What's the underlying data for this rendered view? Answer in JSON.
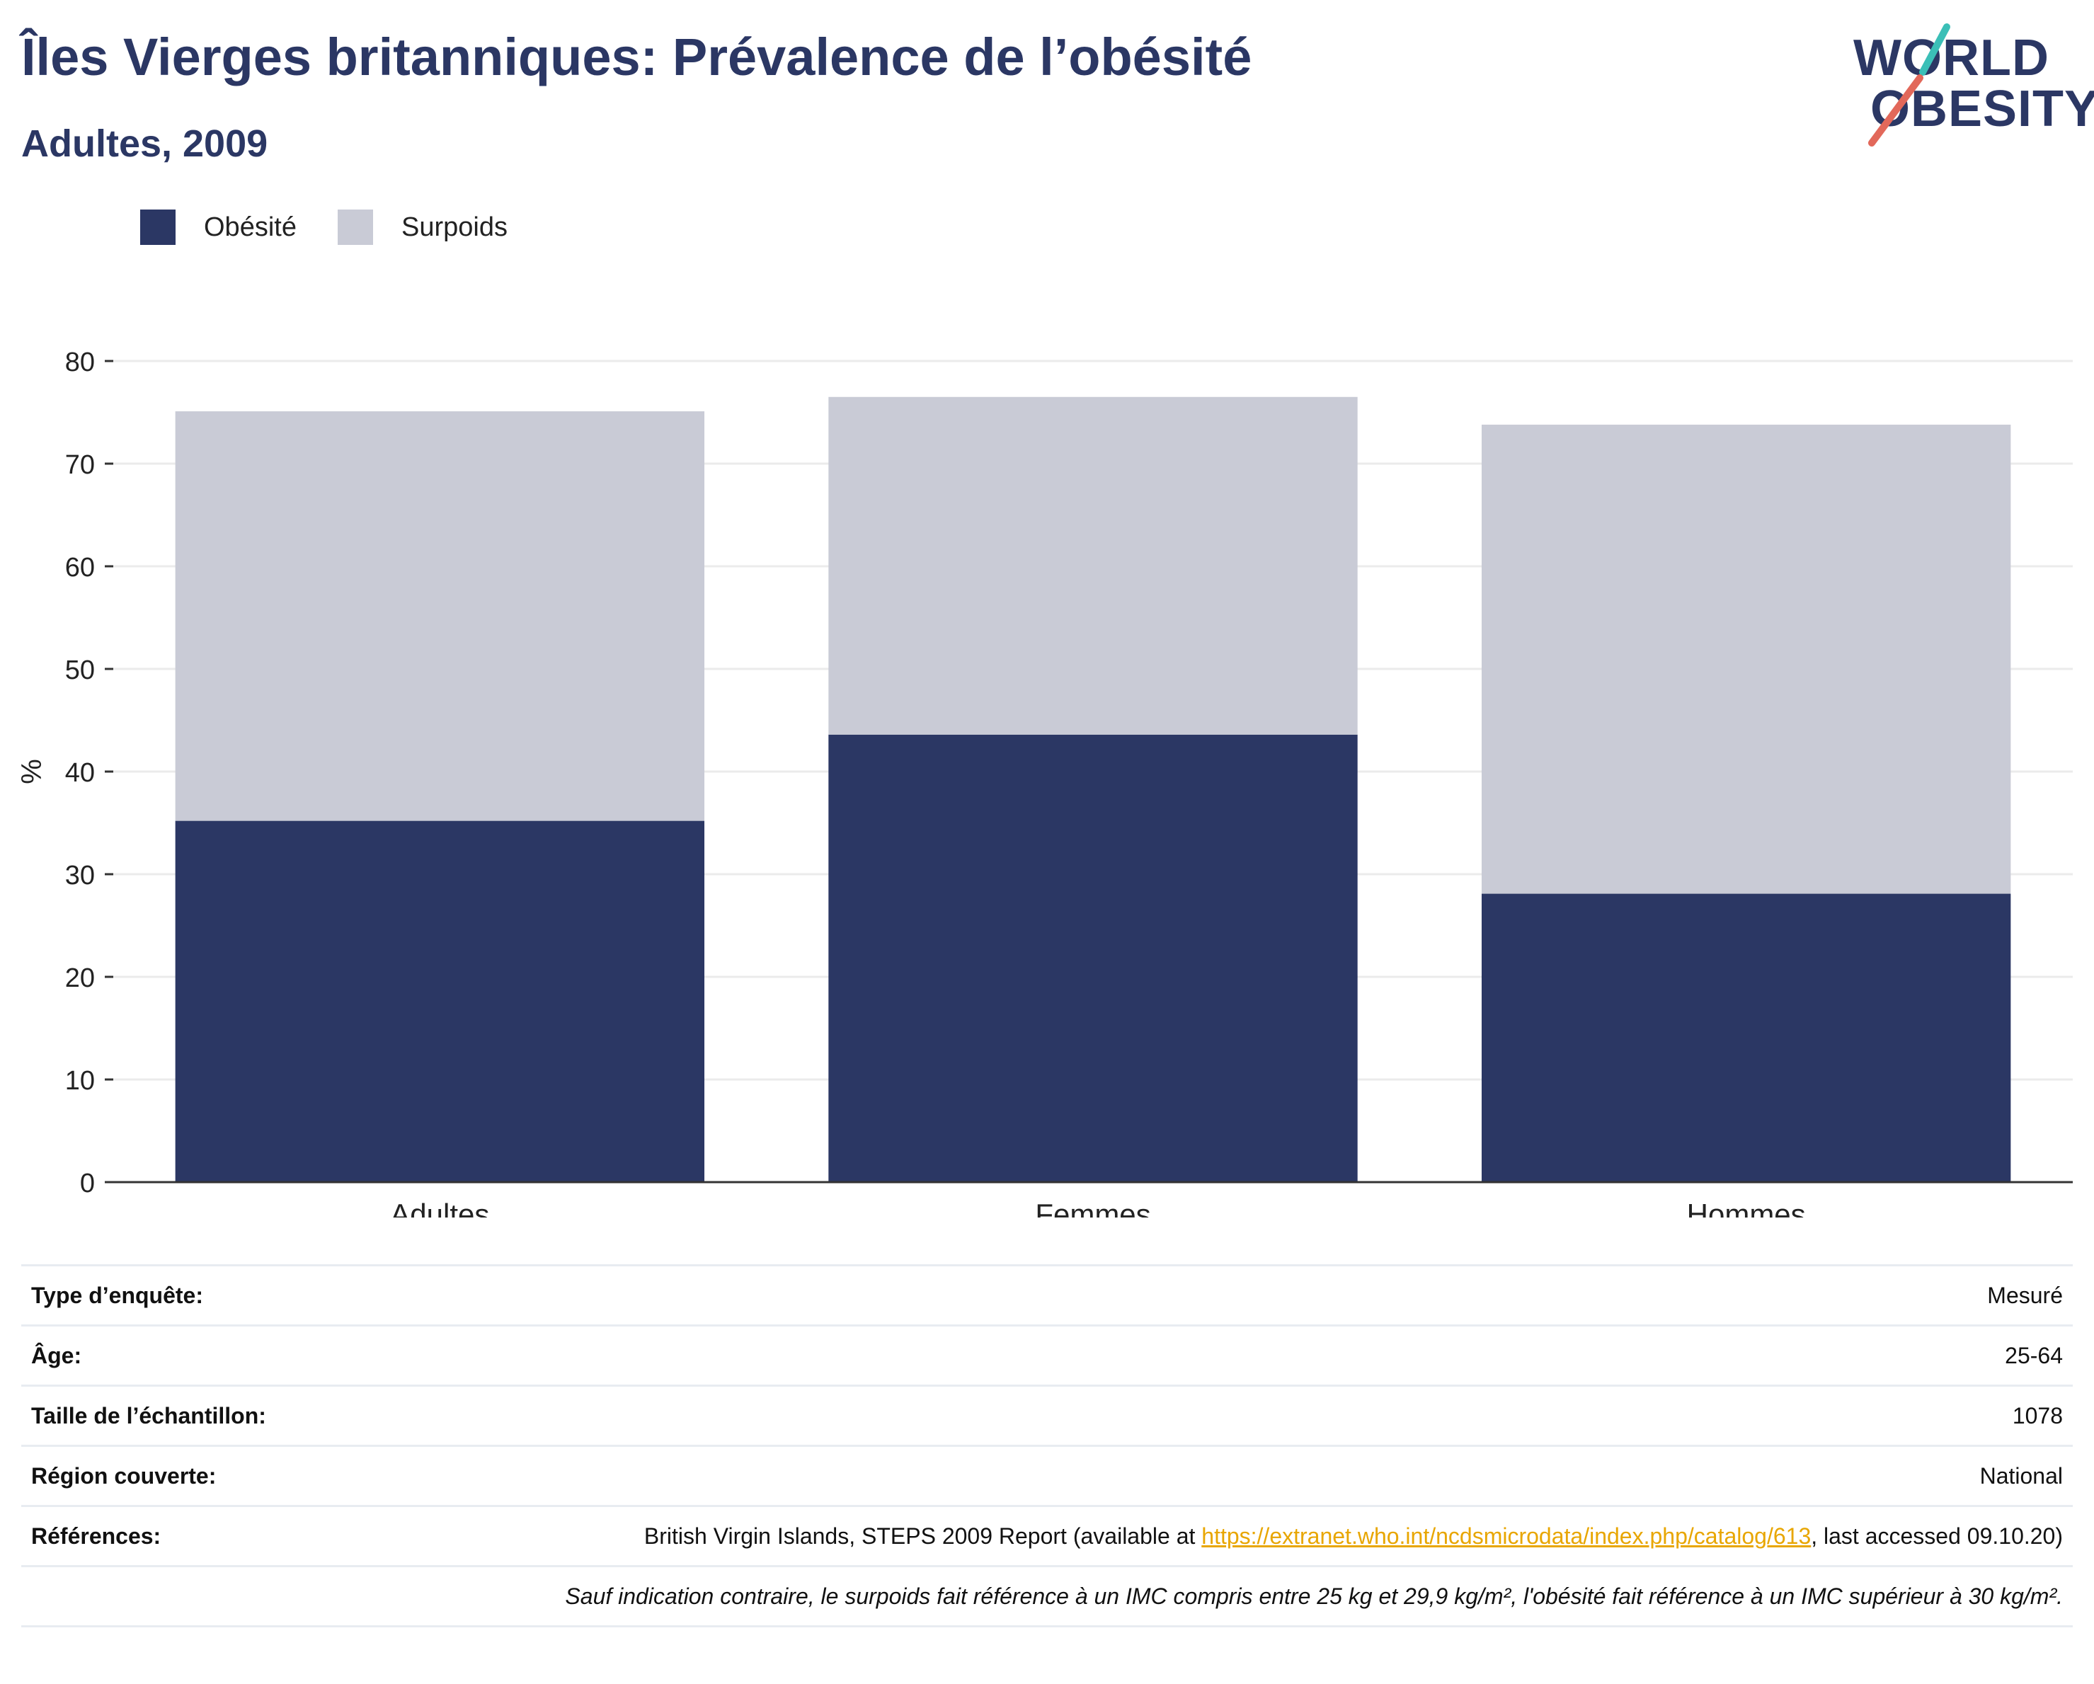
{
  "header": {
    "title": "Îles Vierges britanniques: Prévalence de l’obésité",
    "subtitle": "Adultes, 2009"
  },
  "logo": {
    "line1": "WORLD",
    "line2": "OBESITY",
    "colors": {
      "text": "#2b3764",
      "slash_teal": "#3bbfb7",
      "slash_red": "#e2685a"
    }
  },
  "legend": [
    {
      "label": "Obésité",
      "color": "#2b3764"
    },
    {
      "label": "Surpoids",
      "color": "#c9cbd6"
    }
  ],
  "chart_data": {
    "type": "bar",
    "stacked": true,
    "categories": [
      "Adultes",
      "Femmes",
      "Hommes"
    ],
    "series": [
      {
        "name": "Obésité",
        "values": [
          35.2,
          43.6,
          28.1
        ],
        "color": "#2b3764"
      },
      {
        "name": "Surpoids",
        "values": [
          39.9,
          32.9,
          45.7
        ],
        "color": "#c9cbd6"
      }
    ],
    "ylabel": "%",
    "ylim": [
      0,
      80
    ],
    "yticks": [
      0,
      10,
      20,
      30,
      40,
      50,
      60,
      70,
      80
    ],
    "grid": true,
    "legend_position": "top-left"
  },
  "info": {
    "rows": [
      {
        "key": "Type d’enquête:",
        "value": "Mesuré"
      },
      {
        "key": "Âge:",
        "value": "25-64"
      },
      {
        "key": "Taille de l’échantillon:",
        "value": "1078"
      },
      {
        "key": "Région couverte:",
        "value": "National"
      }
    ],
    "references": {
      "key": "Références:",
      "text_before": "British Virgin Islands, STEPS 2009 Report (available at ",
      "link": "https://extranet.who.int/ncdsmicrodata/index.php/catalog/613",
      "text_after": ", last accessed 09.10.20)"
    },
    "note": "Sauf indication contraire, le surpoids fait référence à un IMC compris entre 25 kg et 29,9 kg/m², l'obésité fait référence à un IMC supérieur à 30 kg/m²."
  }
}
